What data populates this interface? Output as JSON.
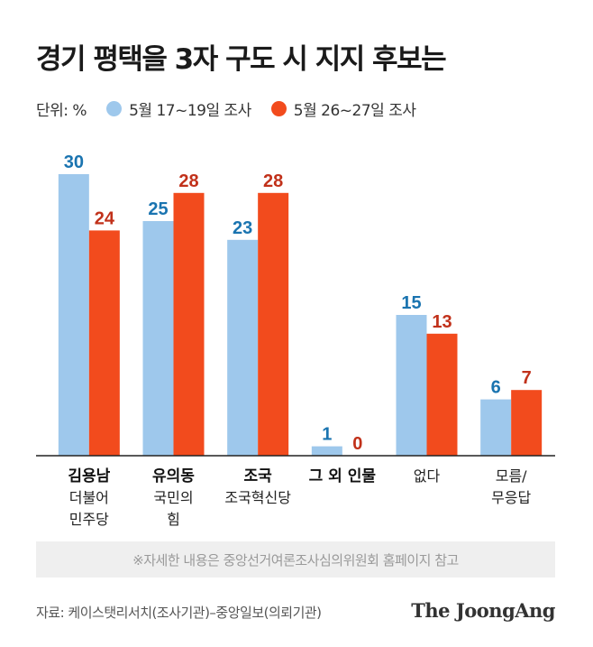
{
  "title": "경기 평택을 3자 구도 시 지지 후보는",
  "legend": {
    "unit": "단위: %",
    "series1": "5월 17~19일 조사",
    "series2": "5월 26~27일 조사"
  },
  "colors": {
    "series1": "#9ec8ec",
    "series2": "#f24b1d",
    "label1": "#1a74b0",
    "label2": "#c1311a"
  },
  "chart_data": {
    "type": "bar",
    "categories": [
      {
        "name": "김용남",
        "sub": [
          "더불어",
          "민주당"
        ]
      },
      {
        "name": "유의동",
        "sub": [
          "국민의",
          "힘"
        ]
      },
      {
        "name": "조국",
        "sub": [
          "조국혁신당"
        ]
      },
      {
        "name": "그 외 인물",
        "sub": []
      },
      {
        "name": "",
        "sub": [
          "없다"
        ]
      },
      {
        "name": "",
        "sub": [
          "모름/",
          "무응답"
        ]
      }
    ],
    "series": [
      {
        "name": "5월 17~19일 조사",
        "values": [
          30,
          25,
          23,
          1,
          15,
          6
        ]
      },
      {
        "name": "5월 26~27일 조사",
        "values": [
          24,
          28,
          28,
          0,
          13,
          7
        ]
      }
    ],
    "ylim": [
      0,
      30
    ],
    "grid": false
  },
  "note": "※자세한 내용은 중앙선거여론조사심의위원회 홈페이지 참고",
  "source": "자료: 케이스탯리서치(조사기관)–중앙일보(의뢰기관)",
  "logo": "The JoongAng"
}
